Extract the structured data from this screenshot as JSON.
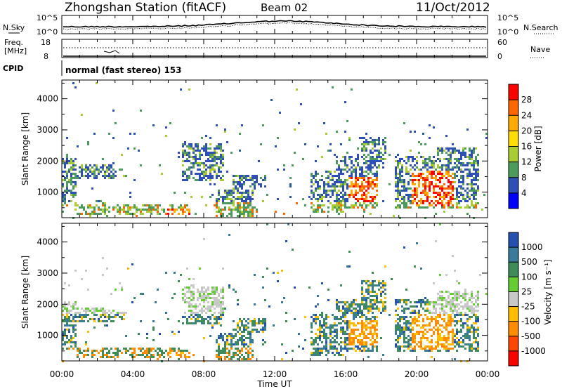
{
  "header": {
    "station": "Zhongshan Station (fitACF)",
    "beam": "Beam 02",
    "date": "11/Oct/2012"
  },
  "chart_data": [
    {
      "type": "line",
      "panel": "noise",
      "left_label": "N.Sky",
      "right_label": "N.Search",
      "left_ticks": [
        "10^5",
        "10^0"
      ],
      "right_ticks": [
        "10^5",
        "10^0"
      ],
      "scale": "log",
      "ylim": [
        1,
        100000
      ]
    },
    {
      "type": "line",
      "panel": "frequency",
      "left_label": "Freq.",
      "left_unit": "[MHz]",
      "right_label": "Nave",
      "left_ticks": [
        "18",
        "8"
      ],
      "right_ticks": [
        "60",
        "0"
      ],
      "ylim_left": [
        8,
        18
      ],
      "ylim_right": [
        0,
        60
      ]
    },
    {
      "type": "table",
      "panel": "cpid",
      "label": "CPID",
      "value": "normal (fast stereo) 153"
    },
    {
      "type": "heatmap",
      "panel": "power",
      "ylabel": "Slant Range [km]",
      "yticks": [
        "4000",
        "3000",
        "2000",
        "1000"
      ],
      "ylim": [
        180,
        4600
      ],
      "colorbar_label": "Power [dB]",
      "colorbar_ticks": [
        "28",
        "24",
        "20",
        "16",
        "12",
        "8",
        "4"
      ],
      "colorbar_range": [
        0,
        30
      ],
      "colors": [
        "#ff0000",
        "#ff6600",
        "#ffaa00",
        "#ffdd00",
        "#aacc33",
        "#4c9a5c",
        "#2e4fb5",
        "#0000ff"
      ]
    },
    {
      "type": "heatmap",
      "panel": "velocity",
      "ylabel": "Slant Range [km]",
      "yticks": [
        "4000",
        "3000",
        "2000",
        "1000"
      ],
      "ylim": [
        180,
        4600
      ],
      "colorbar_label": "Velocity [m s⁻¹]",
      "colorbar_ticks": [
        "1000",
        "500",
        "100",
        "25",
        "-25",
        "-100",
        "-500",
        "-1000"
      ],
      "colors": [
        "#2450b0",
        "#3a7a9a",
        "#3e8c5a",
        "#66cc33",
        "#c8c8c8",
        "#ffbf00",
        "#ff8c00",
        "#ff4500",
        "#ff0000"
      ]
    }
  ],
  "time_axis": {
    "labels": [
      "00:00",
      "04:00",
      "08:00",
      "12:00",
      "16:00",
      "20:00",
      "00:00"
    ],
    "title": "Time UT"
  }
}
